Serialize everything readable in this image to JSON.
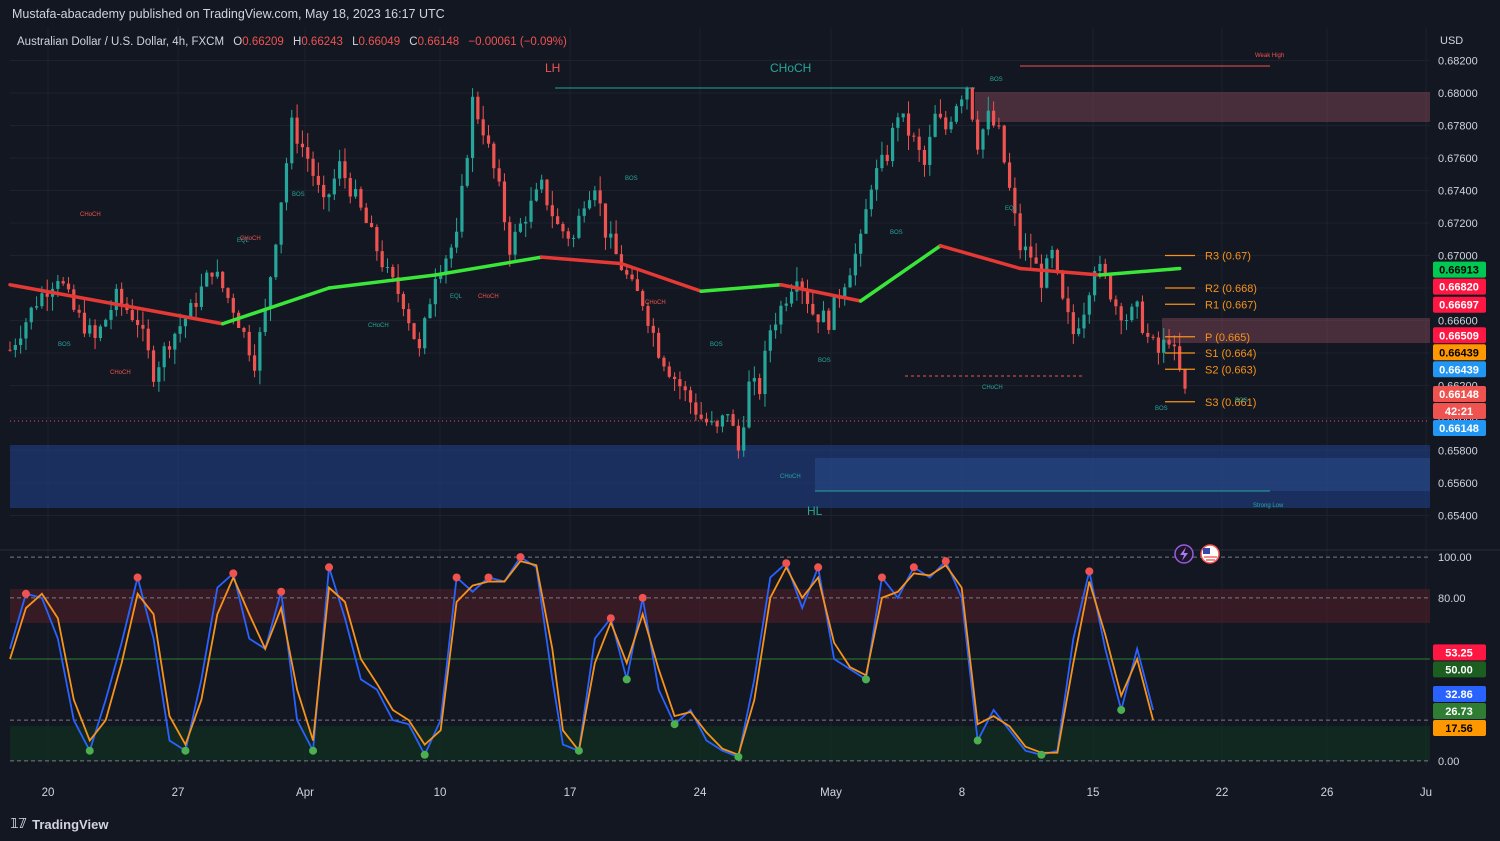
{
  "header": {
    "publisher": "Mustafa-abacademy published on TradingView.com, May 18, 2023 16:17 UTC"
  },
  "symbol": {
    "name": "Australian Dollar / U.S. Dollar, 4h, FXCM",
    "open_label": "O",
    "open": "0.66209",
    "high_label": "H",
    "high": "0.66243",
    "low_label": "L",
    "low": "0.66049",
    "close_label": "C",
    "close": "0.66148",
    "change": "−0.00061 (−0.09%)"
  },
  "currency": "USD",
  "footer": {
    "brand": "TradingView"
  },
  "colors": {
    "background": "#131722",
    "bull": "#26a69a",
    "bear": "#ef5350",
    "ema_bull": "#39e639",
    "ema_bear": "#e53935",
    "pivot": "#f7931a",
    "stoch_k": "#2962ff",
    "stoch_d": "#f7931a"
  },
  "annotations": {
    "lh": "LH",
    "choch_top": "CHoCH",
    "hl": "HL",
    "weak_high": "Weak High",
    "strong_low": "Strong Low",
    "small_labels": [
      "CHoCH",
      "BOS",
      "CHoCH",
      "EQL",
      "CHoCH",
      "CHoCH",
      "BOS",
      "EQL",
      "CHoCH",
      "BOS",
      "CHoCH",
      "BOS",
      "BOS",
      "CHoCH",
      "BOS",
      "CHoCH",
      "BOS",
      "BOS",
      "EQL",
      "BOS"
    ]
  },
  "pivots": [
    {
      "label": "R3 (0.67)",
      "value": 0.67
    },
    {
      "label": "R2 (0.668)",
      "value": 0.668
    },
    {
      "label": "R1 (0.667)",
      "value": 0.667
    },
    {
      "label": "P (0.665)",
      "value": 0.665
    },
    {
      "label": "S1 (0.664)",
      "value": 0.664
    },
    {
      "label": "S2 (0.663)",
      "value": 0.663
    },
    {
      "label": "S3 (0.661)",
      "value": 0.661
    }
  ],
  "price_badges": [
    {
      "text": "0.66913",
      "value": 0.66913,
      "color": "#00c853",
      "fg": "#000000"
    },
    {
      "text": "0.66820",
      "value": 0.6682,
      "color": "#ff1744",
      "fg": "#ffffff"
    },
    {
      "text": "0.66697",
      "value": 0.66697,
      "color": "#ff1744",
      "fg": "#ffffff"
    },
    {
      "text": "0.66509",
      "value": 0.66509,
      "color": "#ff1744",
      "fg": "#ffffff"
    },
    {
      "text": "0.66439",
      "value": 0.66439,
      "color": "#ff9800",
      "fg": "#000000"
    },
    {
      "text": "0.66439",
      "value": 0.66439,
      "color": "#2196f3",
      "fg": "#ffffff"
    },
    {
      "text": "0.66148",
      "value": 0.66148,
      "color": "#ef5350",
      "fg": "#ffffff"
    },
    {
      "text": "42:21",
      "value": 0.66148,
      "color": "#ef5350",
      "fg": "#ffffff"
    },
    {
      "text": "0.66148",
      "value": 0.66148,
      "color": "#2196f3",
      "fg": "#ffffff"
    }
  ],
  "osc_badges": [
    {
      "text": "53.25",
      "value": 53.25,
      "color": "#ff1744",
      "fg": "#ffffff"
    },
    {
      "text": "50.00",
      "value": 50,
      "color": "#1b5e20",
      "fg": "#ffffff"
    },
    {
      "text": "32.86",
      "value": 32.86,
      "color": "#2962ff",
      "fg": "#ffffff"
    },
    {
      "text": "26.73",
      "value": 26.73,
      "color": "#2e7d32",
      "fg": "#ffffff"
    },
    {
      "text": "17.56",
      "value": 17.56,
      "color": "#ff9800",
      "fg": "#000000"
    }
  ],
  "chart_data": {
    "type": "candlestick",
    "title": "Australian Dollar / U.S. Dollar, 4h, FXCM",
    "price_axis": {
      "unit": "USD",
      "ticks": [
        "0.68200",
        "0.68000",
        "0.67800",
        "0.67600",
        "0.67400",
        "0.67200",
        "0.67000",
        "0.66800",
        "0.66600",
        "0.66400",
        "0.66200",
        "0.66000",
        "0.65800",
        "0.65600",
        "0.65400"
      ],
      "range": [
        0.652,
        0.684
      ]
    },
    "oscillator_axis": {
      "ticks": [
        "100.00",
        "80.00",
        "0.00"
      ],
      "range": [
        -2,
        102
      ],
      "overbought": 80,
      "midline": 50,
      "oversold": 20
    },
    "time_axis": {
      "ticks": [
        "20",
        "27",
        "Apr",
        "10",
        "17",
        "24",
        "May",
        "8",
        "15",
        "22",
        "26",
        "Ju"
      ]
    },
    "price_path": [
      [
        0,
        0.6642
      ],
      [
        5,
        0.6672
      ],
      [
        9,
        0.6688
      ],
      [
        12,
        0.6666
      ],
      [
        16,
        0.6648
      ],
      [
        20,
        0.6674
      ],
      [
        24,
        0.666
      ],
      [
        27,
        0.6628
      ],
      [
        30,
        0.6648
      ],
      [
        34,
        0.6666
      ],
      [
        38,
        0.6692
      ],
      [
        42,
        0.6668
      ],
      [
        46,
        0.6635
      ],
      [
        48,
        0.6665
      ],
      [
        51,
        0.6735
      ],
      [
        53,
        0.678
      ],
      [
        56,
        0.676
      ],
      [
        59,
        0.673
      ],
      [
        62,
        0.6755
      ],
      [
        65,
        0.6735
      ],
      [
        68,
        0.6712
      ],
      [
        71,
        0.6688
      ],
      [
        74,
        0.6672
      ],
      [
        77,
        0.664
      ],
      [
        80,
        0.669
      ],
      [
        84,
        0.671
      ],
      [
        86,
        0.6765
      ],
      [
        87,
        0.6795
      ],
      [
        89,
        0.6778
      ],
      [
        92,
        0.674
      ],
      [
        94,
        0.6705
      ],
      [
        97,
        0.6725
      ],
      [
        100,
        0.6742
      ],
      [
        103,
        0.6718
      ],
      [
        106,
        0.671
      ],
      [
        108,
        0.6735
      ],
      [
        110,
        0.6745
      ],
      [
        112,
        0.6715
      ],
      [
        114,
        0.67
      ],
      [
        117,
        0.668
      ],
      [
        119,
        0.6672
      ],
      [
        122,
        0.6642
      ],
      [
        124,
        0.663
      ],
      [
        127,
        0.6615
      ],
      [
        130,
        0.66
      ],
      [
        133,
        0.6592
      ],
      [
        135,
        0.6605
      ],
      [
        137,
        0.658
      ],
      [
        139,
        0.662
      ],
      [
        141,
        0.6618
      ],
      [
        143,
        0.6655
      ],
      [
        145,
        0.6668
      ],
      [
        148,
        0.669
      ],
      [
        151,
        0.6665
      ],
      [
        154,
        0.666
      ],
      [
        157,
        0.6685
      ],
      [
        160,
        0.6708
      ],
      [
        162,
        0.6745
      ],
      [
        165,
        0.6762
      ],
      [
        167,
        0.6788
      ],
      [
        170,
        0.677
      ],
      [
        172,
        0.6755
      ],
      [
        174,
        0.6785
      ],
      [
        176,
        0.6778
      ],
      [
        178,
        0.6795
      ],
      [
        180,
        0.6805
      ],
      [
        182,
        0.677
      ],
      [
        184,
        0.6785
      ],
      [
        186,
        0.6775
      ],
      [
        188,
        0.674
      ],
      [
        190,
        0.6705
      ],
      [
        192,
        0.67
      ],
      [
        194,
        0.6685
      ],
      [
        196,
        0.67
      ],
      [
        198,
        0.667
      ],
      [
        200,
        0.6652
      ],
      [
        202,
        0.6668
      ],
      [
        204,
        0.6695
      ],
      [
        206,
        0.6685
      ],
      [
        208,
        0.667
      ],
      [
        210,
        0.6662
      ],
      [
        212,
        0.6666
      ],
      [
        214,
        0.6649
      ],
      [
        216,
        0.664
      ],
      [
        218,
        0.665
      ],
      [
        220,
        0.6628
      ],
      [
        221,
        0.6615
      ]
    ],
    "ema_fast": [
      [
        0,
        0.6682
      ],
      [
        20,
        0.667
      ],
      [
        40,
        0.6658
      ],
      [
        60,
        0.668
      ],
      [
        80,
        0.6688
      ],
      [
        100,
        0.6699
      ],
      [
        115,
        0.6695
      ],
      [
        130,
        0.6678
      ],
      [
        145,
        0.6682
      ],
      [
        160,
        0.6672
      ],
      [
        175,
        0.6706
      ],
      [
        190,
        0.6692
      ],
      [
        205,
        0.6688
      ],
      [
        220,
        0.6692
      ]
    ],
    "stoch_k": [
      [
        0,
        55
      ],
      [
        3,
        82
      ],
      [
        6,
        80
      ],
      [
        9,
        60
      ],
      [
        12,
        20
      ],
      [
        15,
        5
      ],
      [
        18,
        30
      ],
      [
        21,
        58
      ],
      [
        24,
        90
      ],
      [
        27,
        60
      ],
      [
        30,
        10
      ],
      [
        33,
        5
      ],
      [
        36,
        40
      ],
      [
        39,
        85
      ],
      [
        42,
        92
      ],
      [
        45,
        60
      ],
      [
        48,
        55
      ],
      [
        51,
        83
      ],
      [
        54,
        20
      ],
      [
        57,
        5
      ],
      [
        60,
        95
      ],
      [
        63,
        70
      ],
      [
        66,
        40
      ],
      [
        69,
        35
      ],
      [
        72,
        20
      ],
      [
        75,
        18
      ],
      [
        78,
        3
      ],
      [
        81,
        20
      ],
      [
        84,
        90
      ],
      [
        87,
        83
      ],
      [
        90,
        90
      ],
      [
        93,
        88
      ],
      [
        96,
        100
      ],
      [
        99,
        95
      ],
      [
        102,
        40
      ],
      [
        104,
        8
      ],
      [
        107,
        5
      ],
      [
        110,
        60
      ],
      [
        113,
        70
      ],
      [
        116,
        40
      ],
      [
        119,
        80
      ],
      [
        122,
        35
      ],
      [
        125,
        18
      ],
      [
        128,
        25
      ],
      [
        131,
        10
      ],
      [
        134,
        5
      ],
      [
        137,
        2
      ],
      [
        140,
        40
      ],
      [
        143,
        90
      ],
      [
        146,
        97
      ],
      [
        149,
        75
      ],
      [
        152,
        95
      ],
      [
        155,
        50
      ],
      [
        158,
        45
      ],
      [
        161,
        40
      ],
      [
        164,
        90
      ],
      [
        167,
        80
      ],
      [
        170,
        95
      ],
      [
        173,
        90
      ],
      [
        176,
        98
      ],
      [
        179,
        80
      ],
      [
        182,
        10
      ],
      [
        185,
        25
      ],
      [
        188,
        15
      ],
      [
        191,
        5
      ],
      [
        194,
        3
      ],
      [
        197,
        5
      ],
      [
        200,
        60
      ],
      [
        203,
        93
      ],
      [
        206,
        55
      ],
      [
        209,
        25
      ],
      [
        212,
        55
      ],
      [
        215,
        25
      ]
    ],
    "stoch_d": [
      [
        0,
        50
      ],
      [
        3,
        75
      ],
      [
        6,
        82
      ],
      [
        9,
        70
      ],
      [
        12,
        30
      ],
      [
        15,
        10
      ],
      [
        18,
        20
      ],
      [
        21,
        48
      ],
      [
        24,
        82
      ],
      [
        27,
        72
      ],
      [
        30,
        22
      ],
      [
        33,
        8
      ],
      [
        36,
        30
      ],
      [
        39,
        72
      ],
      [
        42,
        90
      ],
      [
        45,
        72
      ],
      [
        48,
        55
      ],
      [
        51,
        75
      ],
      [
        54,
        35
      ],
      [
        57,
        10
      ],
      [
        60,
        85
      ],
      [
        63,
        78
      ],
      [
        66,
        50
      ],
      [
        69,
        38
      ],
      [
        72,
        25
      ],
      [
        75,
        20
      ],
      [
        78,
        8
      ],
      [
        81,
        15
      ],
      [
        84,
        78
      ],
      [
        87,
        86
      ],
      [
        90,
        88
      ],
      [
        93,
        88
      ],
      [
        96,
        98
      ],
      [
        99,
        96
      ],
      [
        102,
        55
      ],
      [
        104,
        15
      ],
      [
        107,
        5
      ],
      [
        110,
        48
      ],
      [
        113,
        68
      ],
      [
        116,
        48
      ],
      [
        119,
        72
      ],
      [
        122,
        45
      ],
      [
        125,
        22
      ],
      [
        128,
        24
      ],
      [
        131,
        14
      ],
      [
        134,
        6
      ],
      [
        137,
        3
      ],
      [
        140,
        30
      ],
      [
        143,
        80
      ],
      [
        146,
        95
      ],
      [
        149,
        80
      ],
      [
        152,
        90
      ],
      [
        155,
        58
      ],
      [
        158,
        46
      ],
      [
        161,
        42
      ],
      [
        164,
        80
      ],
      [
        167,
        83
      ],
      [
        170,
        92
      ],
      [
        173,
        91
      ],
      [
        176,
        96
      ],
      [
        179,
        85
      ],
      [
        182,
        18
      ],
      [
        185,
        22
      ],
      [
        188,
        17
      ],
      [
        191,
        7
      ],
      [
        194,
        4
      ],
      [
        197,
        4
      ],
      [
        200,
        48
      ],
      [
        203,
        88
      ],
      [
        206,
        62
      ],
      [
        209,
        32
      ],
      [
        212,
        50
      ],
      [
        215,
        20
      ]
    ]
  }
}
